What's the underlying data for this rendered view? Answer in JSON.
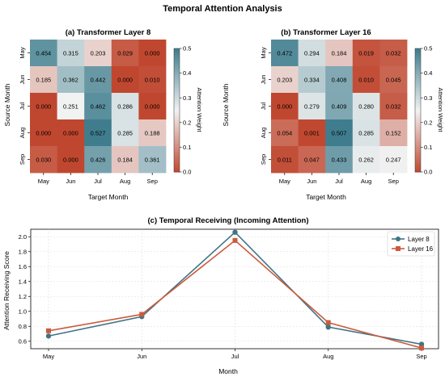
{
  "suptitle": "Temporal Attention Analysis",
  "colors": {
    "low": "#C0472F",
    "mid": "#F2F2F2",
    "high": "#3F7D8E",
    "layer8": "#3F7484",
    "layer16": "#CC5A3E",
    "grid": "#dddddd"
  },
  "chart_data": [
    {
      "type": "heatmap",
      "title": "(a) Transformer Layer 8",
      "xlabel": "Target Month",
      "ylabel": "Source Month",
      "x_categories": [
        "May",
        "Jun",
        "Jul",
        "Aug",
        "Sep"
      ],
      "y_categories": [
        "May",
        "Jun",
        "Jul",
        "Aug",
        "Sep"
      ],
      "values": [
        [
          0.454,
          0.315,
          0.203,
          0.029,
          0.0
        ],
        [
          0.185,
          0.362,
          0.442,
          0.0,
          0.01
        ],
        [
          0.0,
          0.251,
          0.462,
          0.286,
          0.0
        ],
        [
          0.0,
          0.0,
          0.527,
          0.285,
          0.188
        ],
        [
          0.03,
          0.0,
          0.426,
          0.184,
          0.361
        ]
      ],
      "colorbar": {
        "label": "Attention Weight",
        "range": [
          0,
          0.5
        ],
        "ticks": [
          0.0,
          0.1,
          0.2,
          0.3,
          0.4,
          0.5
        ]
      }
    },
    {
      "type": "heatmap",
      "title": "(b) Transformer Layer 16",
      "xlabel": "Target Month",
      "ylabel": "Source Month",
      "x_categories": [
        "May",
        "Jun",
        "Jul",
        "Aug",
        "Sep"
      ],
      "y_categories": [
        "May",
        "Jun",
        "Jul",
        "Aug",
        "Sep"
      ],
      "values": [
        [
          0.472,
          0.294,
          0.184,
          0.019,
          0.032
        ],
        [
          0.203,
          0.334,
          0.408,
          0.01,
          0.045
        ],
        [
          0.0,
          0.279,
          0.409,
          0.28,
          0.032
        ],
        [
          0.054,
          0.001,
          0.507,
          0.285,
          0.152
        ],
        [
          0.011,
          0.047,
          0.433,
          0.262,
          0.247
        ]
      ],
      "colorbar": {
        "label": "Attention Weight",
        "range": [
          0,
          0.5
        ],
        "ticks": [
          0.0,
          0.1,
          0.2,
          0.3,
          0.4,
          0.5
        ]
      }
    },
    {
      "type": "line",
      "title": "(c) Temporal Receiving (Incoming Attention)",
      "xlabel": "Month",
      "ylabel": "Attention Receiving Score",
      "categories": [
        "May",
        "Jun",
        "Jul",
        "Aug",
        "Sep"
      ],
      "ylim": [
        0.5,
        2.1
      ],
      "yticks": [
        0.6,
        0.8,
        1.0,
        1.2,
        1.4,
        1.6,
        1.8,
        2.0
      ],
      "grid": true,
      "legend": "top-right",
      "series": [
        {
          "name": "Layer 8",
          "values": [
            0.67,
            0.93,
            2.06,
            0.79,
            0.56
          ],
          "marker": "circle"
        },
        {
          "name": "Layer 16",
          "values": [
            0.74,
            0.96,
            1.95,
            0.85,
            0.51
          ],
          "marker": "square"
        }
      ]
    }
  ]
}
